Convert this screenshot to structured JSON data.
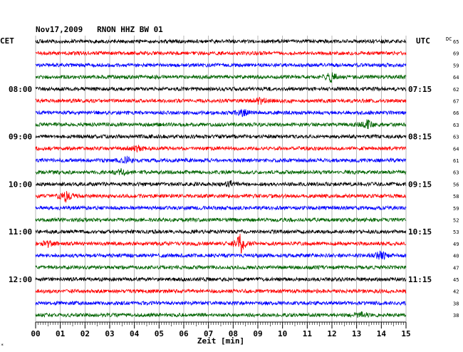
{
  "chart_data": {
    "type": "line",
    "title": "Nov17,2009   RNON HHZ BW 01",
    "left_label": "CET",
    "right_label": "UTC",
    "dc_label": "DC",
    "xlabel": "Zeit [min]",
    "xlim": [
      0,
      15
    ],
    "x_ticks": [
      "00",
      "01",
      "02",
      "03",
      "04",
      "05",
      "06",
      "07",
      "08",
      "09",
      "10",
      "11",
      "12",
      "13",
      "14",
      "15"
    ],
    "left_hours": [
      "08:00",
      "09:00",
      "10:00",
      "11:00",
      "12:00"
    ],
    "right_hours": [
      "07:15",
      "08:15",
      "09:15",
      "10:15",
      "11:15"
    ],
    "dc_values": [
      "65",
      "69",
      "59",
      "64",
      "62",
      "67",
      "66",
      "63",
      "63",
      "64",
      "61",
      "63",
      "56",
      "58",
      "59",
      "52",
      "53",
      "49",
      "40",
      "47",
      "45",
      "42",
      "38",
      "38"
    ],
    "trace_colors": [
      "#000000",
      "#ff0000",
      "#0000ff",
      "#006400"
    ],
    "grid": true,
    "events": [
      {
        "trace": 3,
        "minute": 12.0,
        "amp": 3.0
      },
      {
        "trace": 5,
        "minute": 9.1,
        "amp": 1.8
      },
      {
        "trace": 6,
        "minute": 8.4,
        "amp": 1.8
      },
      {
        "trace": 7,
        "minute": 13.4,
        "amp": 2.5
      },
      {
        "trace": 9,
        "minute": 4.1,
        "amp": 1.5
      },
      {
        "trace": 10,
        "minute": 3.7,
        "amp": 1.5
      },
      {
        "trace": 11,
        "minute": 3.5,
        "amp": 1.6
      },
      {
        "trace": 12,
        "minute": 7.9,
        "amp": 1.6
      },
      {
        "trace": 13,
        "minute": 1.2,
        "amp": 3.0
      },
      {
        "trace": 17,
        "minute": 8.3,
        "amp": 5.0
      },
      {
        "trace": 17,
        "minute": 0.5,
        "amp": 1.6
      },
      {
        "trace": 18,
        "minute": 14.0,
        "amp": 2.6
      },
      {
        "trace": 23,
        "minute": 13.2,
        "amp": 1.5
      }
    ]
  },
  "corner_mark": "*"
}
